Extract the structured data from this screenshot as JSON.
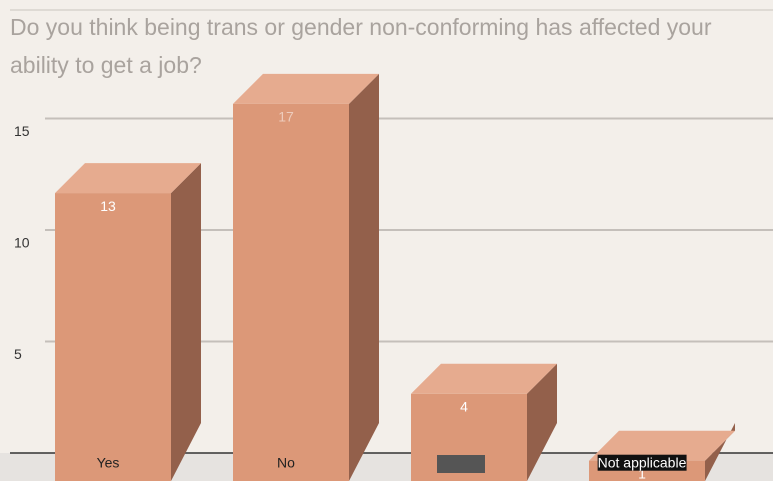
{
  "chart_data": {
    "type": "bar3d",
    "title": "Do you think being trans or gender non-conforming has affected your ability to get a job?",
    "categories": [
      "Yes",
      "No",
      null,
      "Not applicable"
    ],
    "values": [
      13,
      17,
      4,
      1
    ],
    "colors": {
      "front": "#dc9878",
      "side": "#93604b",
      "top": "#e6ab8f"
    },
    "ylim": [
      0,
      20
    ],
    "yticks": [
      5,
      10,
      15
    ],
    "grid": true
  }
}
